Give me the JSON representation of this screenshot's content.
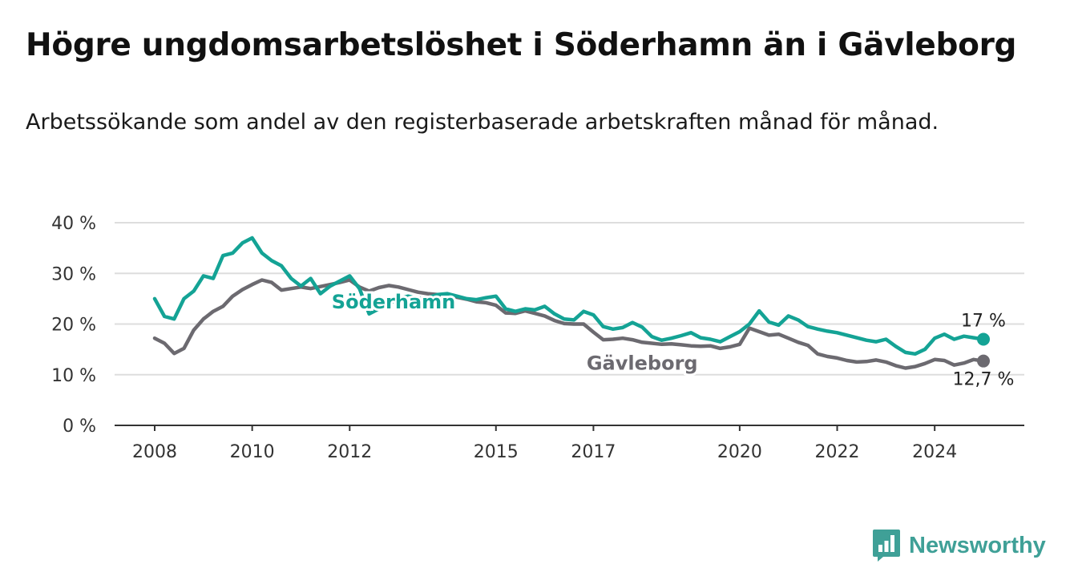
{
  "header": {
    "title": "Högre ungdomsarbetslöshet i Söderhamn än i Gävleborg",
    "subtitle": "Arbetssökande som andel av den registerbaserade arbetskraften månad för månad."
  },
  "brand": {
    "name": "Newsworthy",
    "icon": "newsworthy-logo-icon",
    "color": "#3fa097"
  },
  "chart_data": {
    "type": "line",
    "title": "Högre ungdomsarbetslöshet i Söderhamn än i Gävleborg",
    "subtitle": "Arbetssökande som andel av den registerbaserade arbetskraften månad för månad.",
    "ylim": [
      0,
      40
    ],
    "yticks": [
      0,
      10,
      20,
      30,
      40
    ],
    "ytick_labels": [
      "0 %",
      "10 %",
      "20 %",
      "30 %",
      "40 %"
    ],
    "xlim": [
      2008.0,
      2025.4
    ],
    "xticks": [
      2008,
      2010,
      2012,
      2015,
      2017,
      2020,
      2022,
      2024
    ],
    "xtick_labels": [
      "2008",
      "2010",
      "2012",
      "2015",
      "2017",
      "2020",
      "2022",
      "2024"
    ],
    "grid": true,
    "x": [
      2008.0,
      2008.2,
      2008.4,
      2008.6,
      2008.8,
      2009.0,
      2009.2,
      2009.4,
      2009.6,
      2009.8,
      2010.0,
      2010.2,
      2010.4,
      2010.6,
      2010.8,
      2011.0,
      2011.2,
      2011.4,
      2011.6,
      2011.8,
      2012.0,
      2012.2,
      2012.4,
      2012.6,
      2012.8,
      2013.0,
      2013.2,
      2013.4,
      2013.6,
      2013.8,
      2014.0,
      2014.2,
      2014.4,
      2014.6,
      2014.8,
      2015.0,
      2015.2,
      2015.4,
      2015.6,
      2015.8,
      2016.0,
      2016.2,
      2016.4,
      2016.6,
      2016.8,
      2017.0,
      2017.2,
      2017.4,
      2017.6,
      2017.8,
      2018.0,
      2018.2,
      2018.4,
      2018.6,
      2018.8,
      2019.0,
      2019.2,
      2019.4,
      2019.6,
      2019.8,
      2020.0,
      2020.2,
      2020.4,
      2020.6,
      2020.8,
      2021.0,
      2021.2,
      2021.4,
      2021.6,
      2021.8,
      2022.0,
      2022.2,
      2022.4,
      2022.6,
      2022.8,
      2023.0,
      2023.2,
      2023.4,
      2023.6,
      2023.8,
      2024.0,
      2024.2,
      2024.4,
      2024.6,
      2024.8,
      2025.0
    ],
    "series": [
      {
        "name": "Gävleborg",
        "color": "#6c6a70",
        "label_x": 2018.0,
        "values": [
          17.2,
          16.2,
          14.2,
          15.2,
          18.8,
          21.0,
          22.5,
          23.5,
          25.5,
          26.8,
          27.8,
          28.7,
          28.2,
          26.7,
          27.0,
          27.3,
          27.0,
          27.4,
          27.8,
          28.2,
          28.7,
          27.3,
          26.5,
          27.2,
          27.6,
          27.3,
          26.8,
          26.3,
          26.0,
          25.8,
          25.7,
          25.3,
          24.9,
          24.4,
          24.2,
          23.7,
          22.2,
          22.1,
          22.6,
          22.1,
          21.6,
          20.7,
          20.1,
          20.0,
          20.0,
          18.4,
          16.9,
          17.0,
          17.2,
          16.9,
          16.4,
          16.2,
          16.0,
          16.1,
          15.9,
          15.7,
          15.6,
          15.7,
          15.2,
          15.5,
          16.0,
          19.2,
          18.5,
          17.8,
          18.0,
          17.2,
          16.4,
          15.8,
          14.1,
          13.6,
          13.3,
          12.8,
          12.5,
          12.6,
          12.9,
          12.5,
          11.8,
          11.3,
          11.6,
          12.2,
          13.0,
          12.8,
          11.9,
          12.3,
          13.0,
          12.7
        ],
        "end_label": "12,7 %"
      },
      {
        "name": "Söderhamn",
        "color": "#14a395",
        "label_x": 2012.9,
        "values": [
          25.0,
          21.5,
          21.0,
          25.0,
          26.5,
          29.5,
          29.0,
          33.5,
          34.0,
          36.0,
          37.0,
          34.0,
          32.5,
          31.5,
          29.0,
          27.5,
          29.0,
          26.0,
          27.5,
          28.5,
          29.5,
          27.0,
          22.0,
          23.0,
          24.0,
          25.0,
          25.5,
          25.0,
          25.2,
          25.8,
          26.0,
          25.5,
          25.0,
          24.8,
          25.2,
          25.5,
          23.0,
          22.5,
          23.0,
          22.8,
          23.5,
          22.0,
          21.0,
          20.8,
          22.5,
          21.8,
          19.5,
          19.0,
          19.3,
          20.3,
          19.4,
          17.5,
          16.8,
          17.2,
          17.7,
          18.3,
          17.3,
          17.0,
          16.5,
          17.5,
          18.5,
          20.0,
          22.6,
          20.4,
          19.8,
          21.6,
          20.8,
          19.5,
          19.0,
          18.6,
          18.3,
          17.8,
          17.3,
          16.8,
          16.5,
          17.0,
          15.6,
          14.4,
          14.1,
          15.0,
          17.2,
          18.0,
          17.0,
          17.6,
          17.3,
          17.0
        ],
        "end_label": "17 %"
      }
    ]
  }
}
